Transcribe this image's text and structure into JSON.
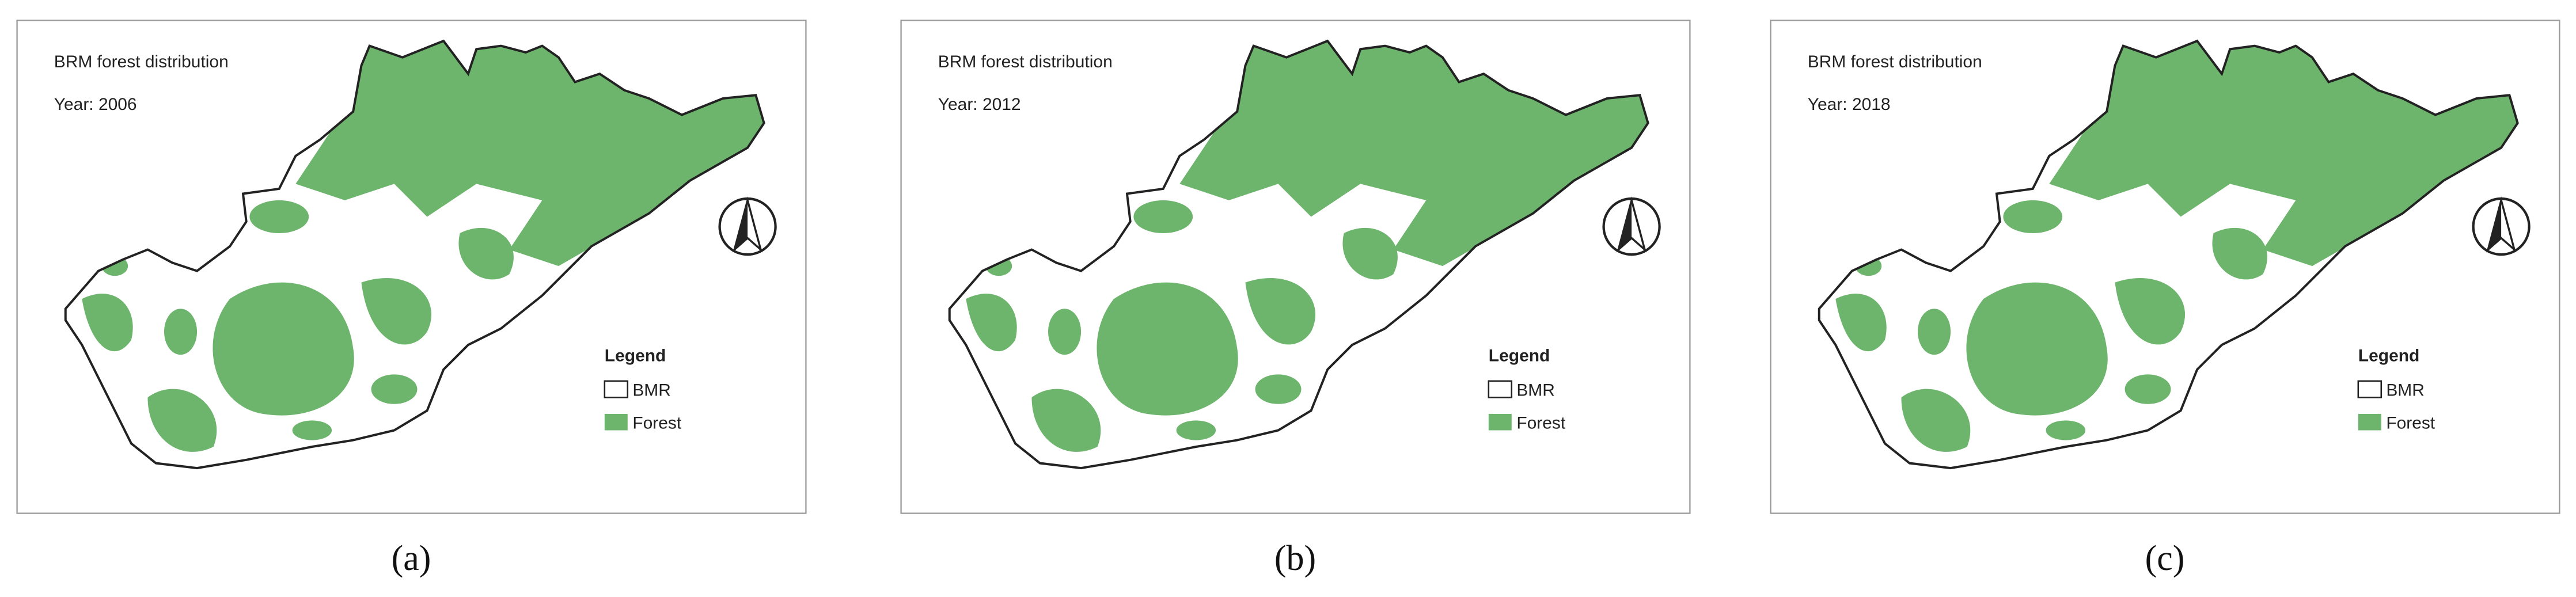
{
  "panels": [
    {
      "title": "BRM forest distribution",
      "year": "Year: 2006",
      "legend": {
        "title": "Legend",
        "items": [
          "BMR",
          "Forest"
        ]
      },
      "caption": "(a)"
    },
    {
      "title": "BRM forest distribution",
      "year": "Year: 2012",
      "legend": {
        "title": "Legend",
        "items": [
          "BMR",
          "Forest"
        ]
      },
      "caption": "(b)"
    },
    {
      "title": "BRM forest distribution",
      "year": "Year: 2018",
      "legend": {
        "title": "Legend",
        "items": [
          "BMR",
          "Forest"
        ]
      },
      "caption": "(c)"
    }
  ]
}
